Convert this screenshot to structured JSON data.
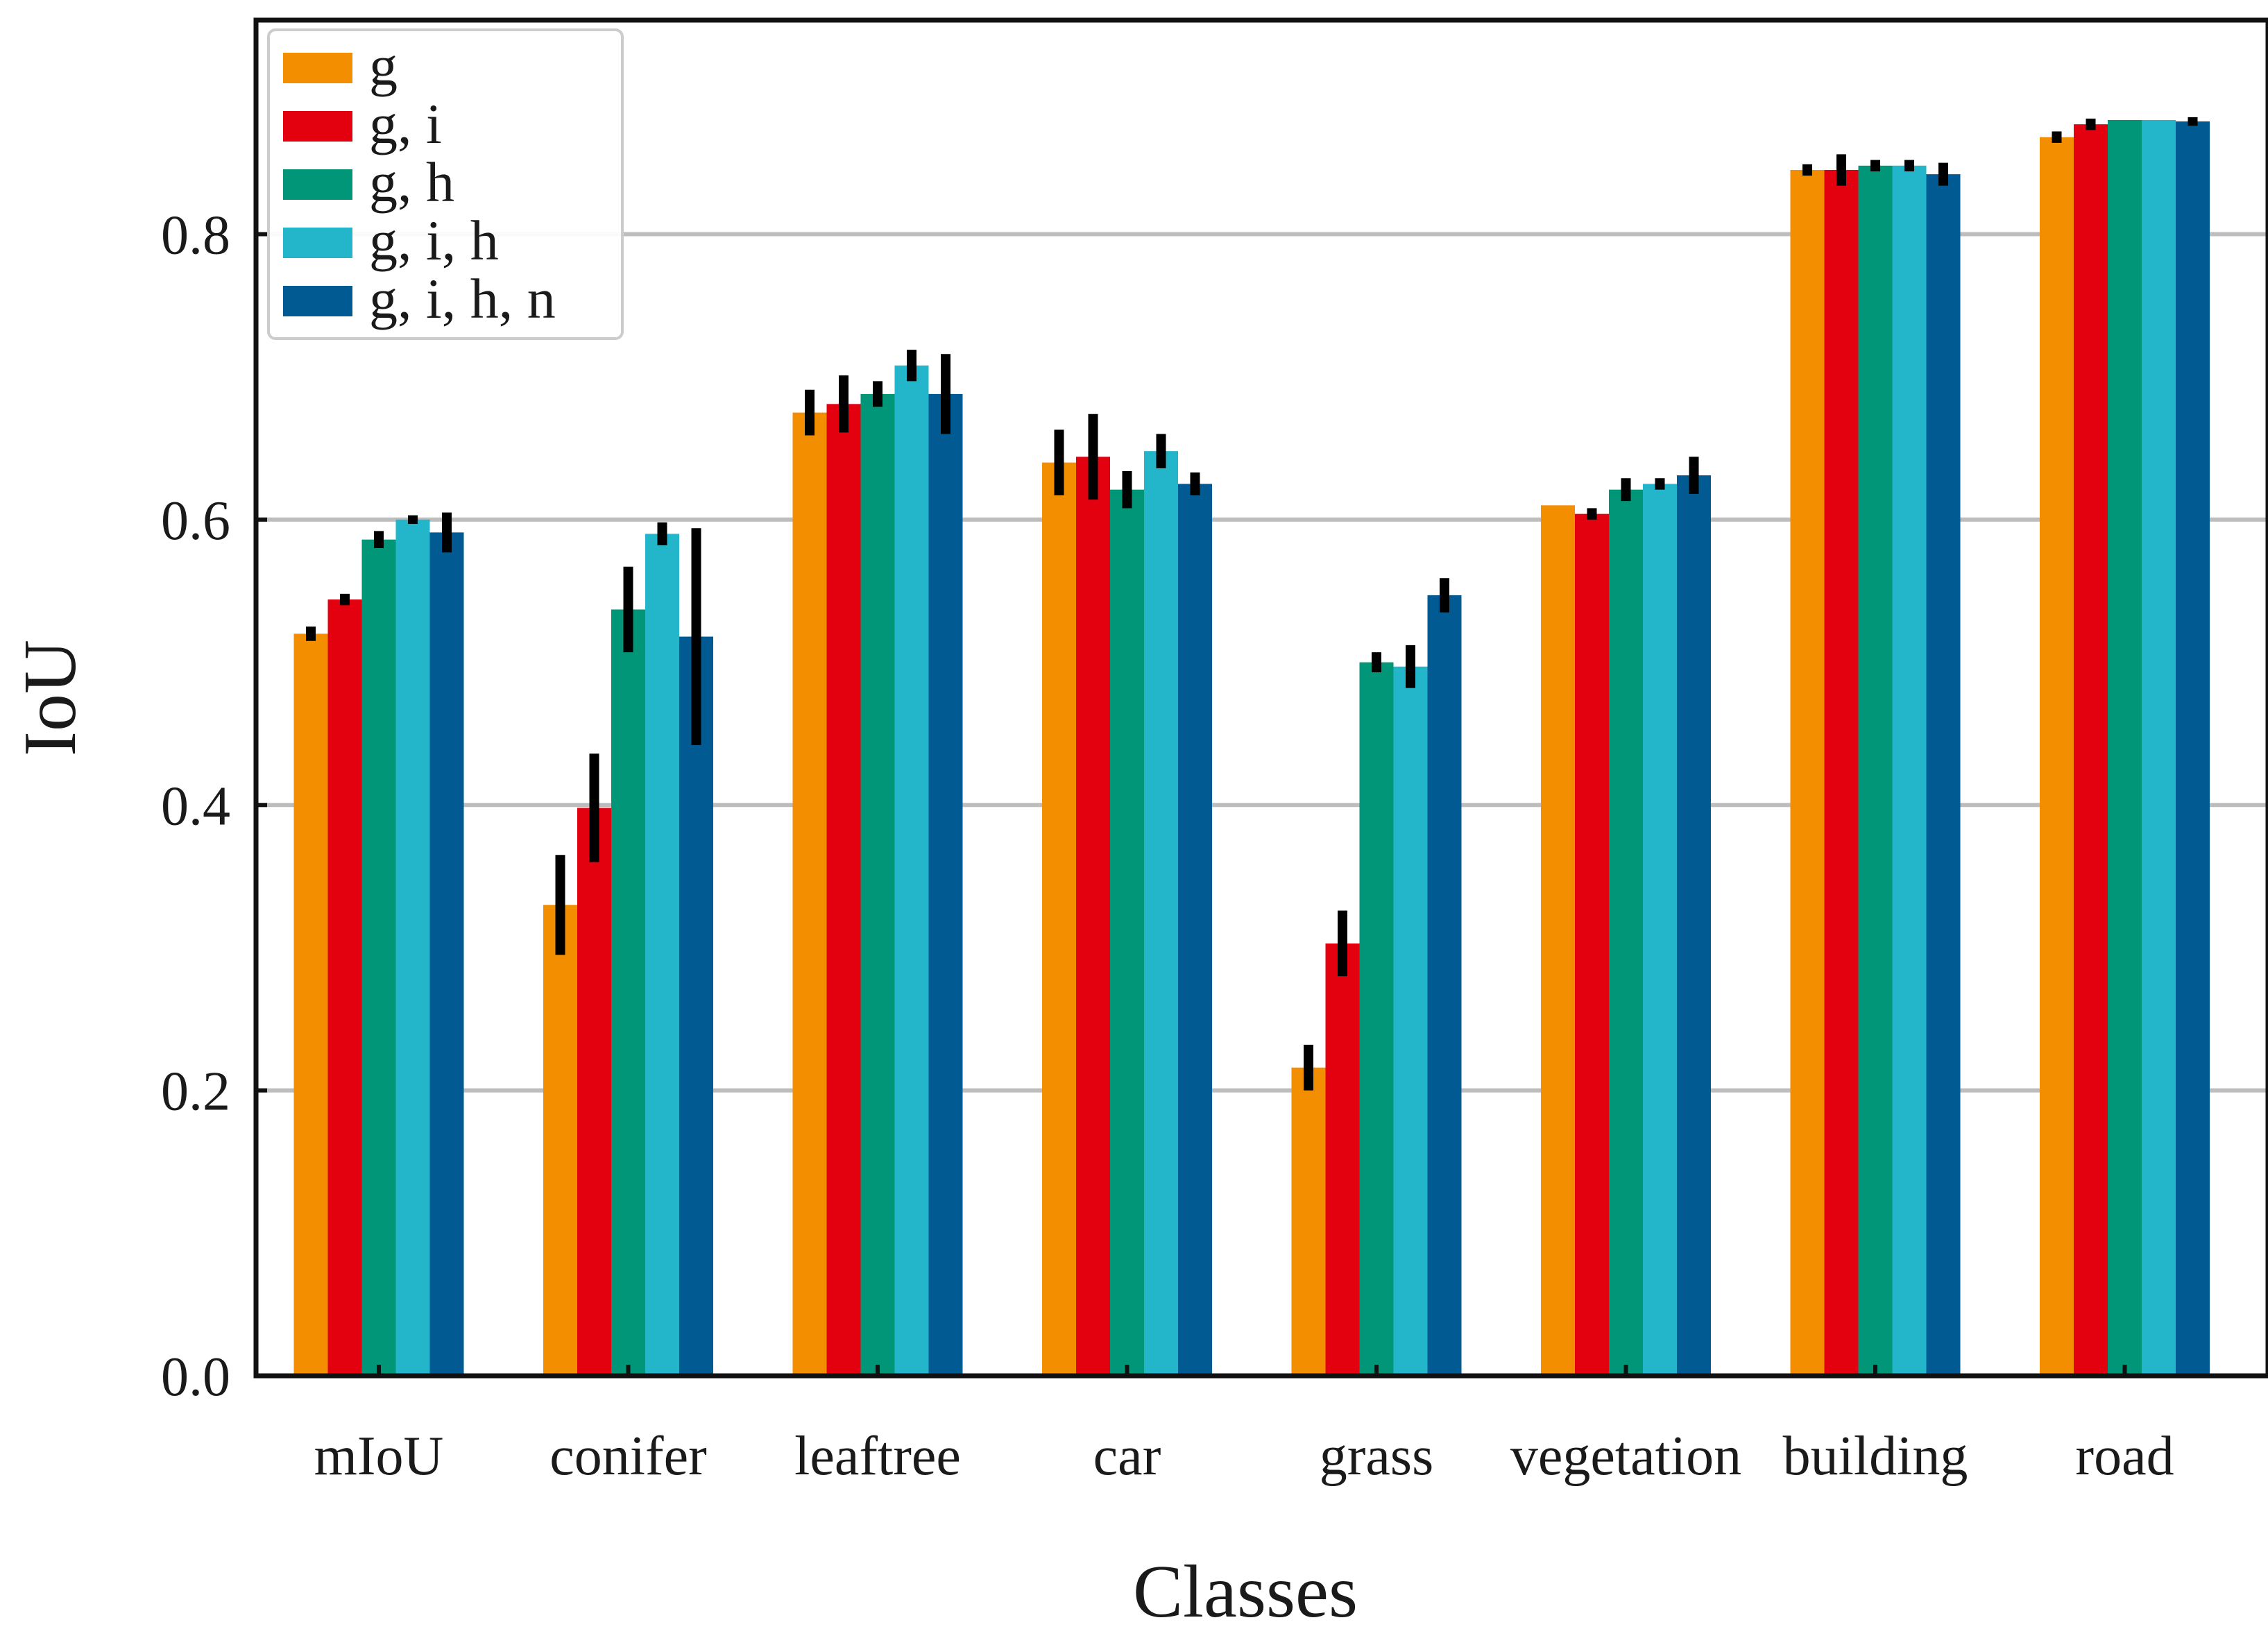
{
  "chart_data": {
    "type": "bar",
    "title": "",
    "xlabel": "Classes",
    "ylabel": "IoU",
    "ylim": [
      0,
      0.95
    ],
    "yticks": [
      "0.0",
      "0.2",
      "0.4",
      "0.6",
      "0.8"
    ],
    "grid": true,
    "legend_position": "top-left",
    "categories": [
      "mIoU",
      "conifer",
      "leaftree",
      "car",
      "grass",
      "vegetation",
      "building",
      "road"
    ],
    "series": [
      {
        "name": "g",
        "color": "#F28E00",
        "values": [
          0.52,
          0.33,
          0.675,
          0.64,
          0.216,
          0.61,
          0.845,
          0.868
        ],
        "errors": [
          0.005,
          0.035,
          0.016,
          0.023,
          0.016,
          0.0,
          0.004,
          0.004
        ]
      },
      {
        "name": "g, i",
        "color": "#E3000F",
        "values": [
          0.544,
          0.398,
          0.681,
          0.644,
          0.303,
          0.604,
          0.845,
          0.877
        ],
        "errors": [
          0.004,
          0.038,
          0.02,
          0.03,
          0.023,
          0.004,
          0.011,
          0.004
        ]
      },
      {
        "name": "g, h",
        "color": "#009677",
        "values": [
          0.586,
          0.537,
          0.688,
          0.621,
          0.5,
          0.621,
          0.848,
          0.88
        ],
        "errors": [
          0.006,
          0.03,
          0.009,
          0.013,
          0.007,
          0.008,
          0.004,
          0.0
        ]
      },
      {
        "name": "g, i, h",
        "color": "#23B6CB",
        "values": [
          0.6,
          0.59,
          0.708,
          0.648,
          0.497,
          0.625,
          0.848,
          0.88
        ],
        "errors": [
          0.003,
          0.008,
          0.011,
          0.012,
          0.015,
          0.004,
          0.004,
          0.0
        ]
      },
      {
        "name": "g, i, h, n",
        "color": "#015A92",
        "values": [
          0.591,
          0.518,
          0.688,
          0.625,
          0.547,
          0.631,
          0.842,
          0.879
        ],
        "errors": [
          0.014,
          0.076,
          0.028,
          0.008,
          0.012,
          0.013,
          0.008,
          0.003
        ]
      }
    ]
  }
}
